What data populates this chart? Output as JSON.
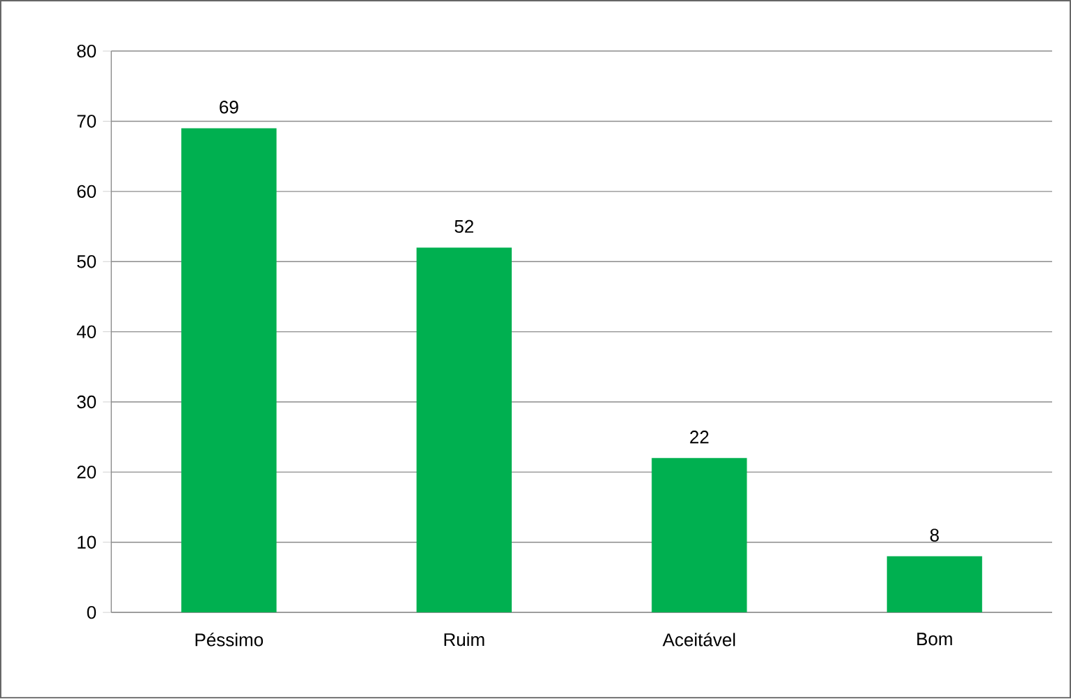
{
  "chart_data": {
    "type": "bar",
    "categories": [
      "Péssimo",
      "Ruim",
      "Aceitável",
      "Bom"
    ],
    "values": [
      69,
      52,
      22,
      8
    ],
    "color": "#00b050",
    "ylim": [
      0,
      80
    ],
    "yticks": [
      0,
      10,
      20,
      30,
      40,
      50,
      60,
      70,
      80
    ],
    "grid": "y",
    "data_labels": true
  }
}
